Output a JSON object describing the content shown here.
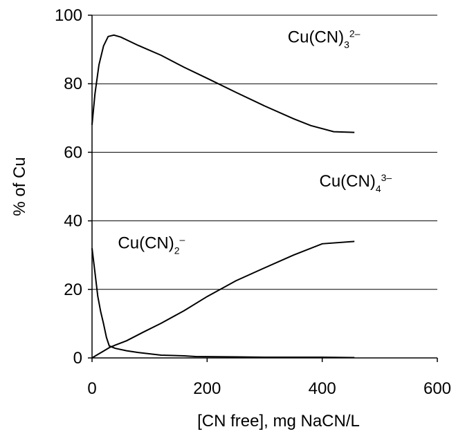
{
  "chart_data": {
    "type": "line",
    "xlabel": "[CN free], mg NaCN/L",
    "ylabel": "% of Cu",
    "xlim": [
      0,
      600
    ],
    "ylim": [
      0,
      100
    ],
    "xticks": [
      "0",
      "200",
      "400",
      "600"
    ],
    "yticks": [
      "0",
      "20",
      "40",
      "60",
      "80",
      "100"
    ],
    "ygrid_values": [
      20,
      40,
      60,
      80,
      100
    ],
    "series": [
      {
        "name": "Cu(CN)3 2–",
        "label_parts": {
          "base": "Cu(CN)",
          "sub": "3",
          "sup": "2–"
        },
        "label_anchor": [
          340,
          92
        ],
        "points": [
          [
            0,
            68
          ],
          [
            5,
            77
          ],
          [
            12,
            85.5
          ],
          [
            20,
            91
          ],
          [
            28,
            93.8
          ],
          [
            38,
            94.2
          ],
          [
            50,
            93.6
          ],
          [
            80,
            91.2
          ],
          [
            120,
            88.3
          ],
          [
            160,
            84.8
          ],
          [
            200,
            81.6
          ],
          [
            250,
            77.5
          ],
          [
            300,
            73.5
          ],
          [
            350,
            69.8
          ],
          [
            380,
            67.8
          ],
          [
            420,
            66
          ],
          [
            456,
            65.8
          ]
        ]
      },
      {
        "name": "Cu(CN)4 3–",
        "label_parts": {
          "base": "Cu(CN)",
          "sub": "4",
          "sup": "3–"
        },
        "label_anchor": [
          395,
          50
        ],
        "points": [
          [
            0,
            0
          ],
          [
            10,
            1
          ],
          [
            20,
            2
          ],
          [
            30,
            3
          ],
          [
            40,
            3.7
          ],
          [
            60,
            5
          ],
          [
            90,
            7.6
          ],
          [
            120,
            10.1
          ],
          [
            160,
            13.8
          ],
          [
            200,
            17.9
          ],
          [
            250,
            22.5
          ],
          [
            300,
            26.3
          ],
          [
            350,
            30
          ],
          [
            400,
            33.3
          ],
          [
            456,
            34
          ]
        ]
      },
      {
        "name": "Cu(CN)2 –",
        "label_parts": {
          "base": "Cu(CN)",
          "sub": "2",
          "sup": "–"
        },
        "label_anchor": [
          45,
          32
        ],
        "points": [
          [
            0,
            32
          ],
          [
            5,
            25
          ],
          [
            10,
            18
          ],
          [
            15,
            13.5
          ],
          [
            20,
            10
          ],
          [
            25,
            6
          ],
          [
            30,
            3.5
          ],
          [
            40,
            2.8
          ],
          [
            60,
            2.1
          ],
          [
            80,
            1.6
          ],
          [
            120,
            0.8
          ],
          [
            160,
            0.6
          ],
          [
            180,
            0.4
          ],
          [
            250,
            0.3
          ],
          [
            300,
            0.2
          ],
          [
            400,
            0.2
          ],
          [
            456,
            0.1
          ]
        ]
      }
    ]
  }
}
